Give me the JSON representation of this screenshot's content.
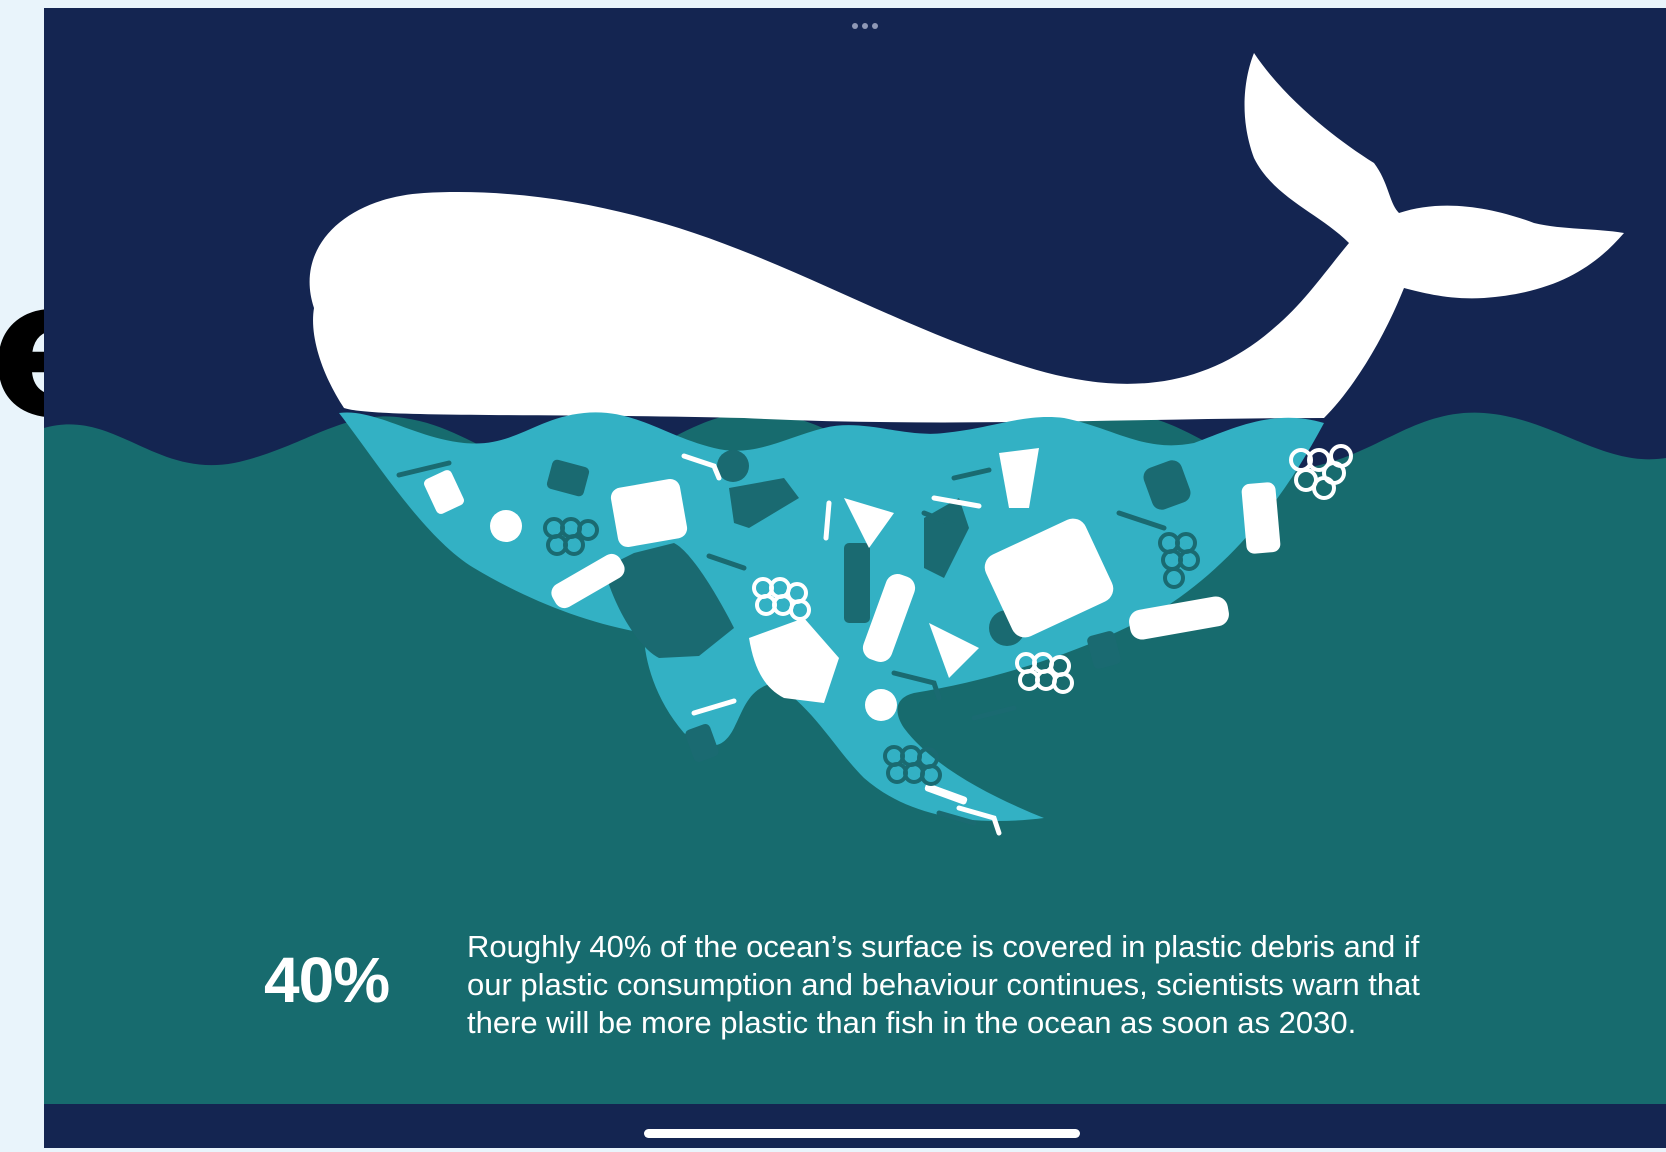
{
  "infographic": {
    "stat_value": "40%",
    "caption_lines": [
      "Roughly 40% of the ocean’s surface is covered in plastic debris and if",
      "our plastic consumption and behaviour continues, scientists warn that",
      "there will be more plastic than fish in the ocean as soon as 2030."
    ]
  },
  "colors": {
    "sky": "#142551",
    "ocean": "#176b6e",
    "whale": "#ffffff",
    "belly": "#33b1c4",
    "debris_dark": "#1a6a71",
    "page_background": "#e9f4fb"
  },
  "icons": [
    "whale-illustration",
    "plastic-debris-icons",
    "more-dots-icon"
  ]
}
